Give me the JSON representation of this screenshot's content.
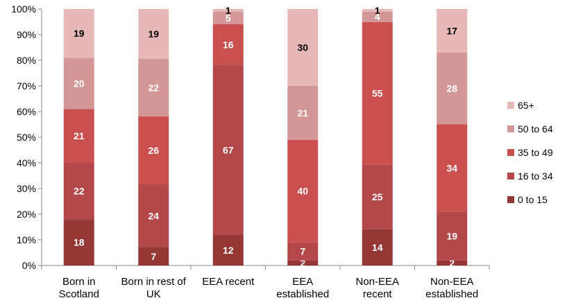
{
  "chart_data": {
    "type": "bar",
    "stacked": true,
    "percent_stacked": true,
    "title": "",
    "xlabel": "",
    "ylabel": "",
    "ylim": [
      0,
      100
    ],
    "y_ticks": [
      "0%",
      "10%",
      "20%",
      "30%",
      "40%",
      "50%",
      "60%",
      "70%",
      "80%",
      "90%",
      "100%"
    ],
    "categories": [
      [
        "Born in",
        "Scotland"
      ],
      [
        "Born in rest of",
        "UK"
      ],
      [
        "EEA recent"
      ],
      [
        "EEA",
        "established"
      ],
      [
        "Non-EEA",
        "recent"
      ],
      [
        "Non-EEA",
        "established"
      ]
    ],
    "series": [
      {
        "name": "0 to 15",
        "color": "#953735",
        "label_color": "#ffffff",
        "values": [
          18,
          7,
          12,
          2,
          14,
          2
        ]
      },
      {
        "name": "16 to 34",
        "color": "#b3474a",
        "label_color": "#ffffff",
        "values": [
          22,
          24,
          67,
          7,
          25,
          19
        ]
      },
      {
        "name": "35 to 49",
        "color": "#c9504f",
        "label_color": "#ffffff",
        "values": [
          21,
          26,
          16,
          40,
          55,
          34
        ]
      },
      {
        "name": "50 to 64",
        "color": "#d49797",
        "label_color": "#ffffff",
        "values": [
          20,
          22,
          5,
          21,
          4,
          28
        ]
      },
      {
        "name": "65+",
        "color": "#e6b9b8",
        "label_color": "#000000",
        "values": [
          19,
          19,
          1,
          30,
          1,
          17
        ]
      }
    ],
    "legend_position": "right",
    "grid": false
  }
}
